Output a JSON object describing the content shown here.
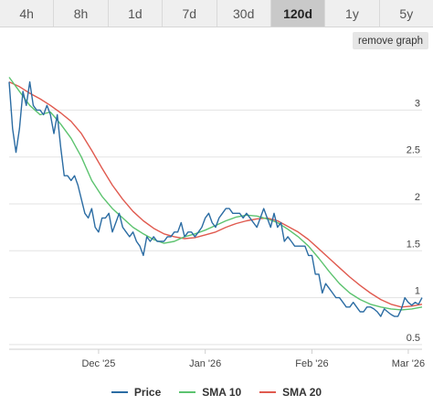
{
  "tabs": [
    {
      "label": "4h",
      "active": false
    },
    {
      "label": "8h",
      "active": false
    },
    {
      "label": "1d",
      "active": false
    },
    {
      "label": "7d",
      "active": false
    },
    {
      "label": "30d",
      "active": false
    },
    {
      "label": "120d",
      "active": true
    },
    {
      "label": "1y",
      "active": false
    },
    {
      "label": "5y",
      "active": false
    }
  ],
  "remove_graph_label": "remove graph",
  "chart_data": {
    "type": "line",
    "xlim": [
      "2025-11-05",
      "2026-03-05"
    ],
    "ylim": [
      0.45,
      3.55
    ],
    "y_ticks": [
      0.5,
      1,
      1.5,
      2,
      2.5,
      3
    ],
    "y_tick_labels": [
      "0.5",
      "1",
      "1.5",
      "2",
      "2.5",
      "3"
    ],
    "x_ticks": [
      "2025-12-01",
      "2026-01-01",
      "2026-02-01",
      "2026-03-01"
    ],
    "x_tick_labels": [
      "Dec '25",
      "Jan '26",
      "Feb '26",
      "Mar '26"
    ],
    "grid": true,
    "legend_position": "bottom",
    "series": [
      {
        "name": "Price",
        "color": "#2b6ca3",
        "points": [
          [
            "2025-11-05",
            3.3
          ],
          [
            "2025-11-06",
            2.8
          ],
          [
            "2025-11-07",
            2.55
          ],
          [
            "2025-11-08",
            2.8
          ],
          [
            "2025-11-09",
            3.2
          ],
          [
            "2025-11-10",
            3.05
          ],
          [
            "2025-11-11",
            3.3
          ],
          [
            "2025-11-12",
            3.05
          ],
          [
            "2025-11-13",
            3.0
          ],
          [
            "2025-11-14",
            3.0
          ],
          [
            "2025-11-15",
            2.95
          ],
          [
            "2025-11-16",
            3.05
          ],
          [
            "2025-11-17",
            2.95
          ],
          [
            "2025-11-18",
            2.75
          ],
          [
            "2025-11-19",
            2.95
          ],
          [
            "2025-11-20",
            2.6
          ],
          [
            "2025-11-21",
            2.3
          ],
          [
            "2025-11-22",
            2.3
          ],
          [
            "2025-11-23",
            2.25
          ],
          [
            "2025-11-24",
            2.3
          ],
          [
            "2025-11-25",
            2.2
          ],
          [
            "2025-11-26",
            2.05
          ],
          [
            "2025-11-27",
            1.9
          ],
          [
            "2025-11-28",
            1.85
          ],
          [
            "2025-11-29",
            1.95
          ],
          [
            "2025-11-30",
            1.75
          ],
          [
            "2025-12-01",
            1.7
          ],
          [
            "2025-12-02",
            1.85
          ],
          [
            "2025-12-03",
            1.85
          ],
          [
            "2025-12-04",
            1.9
          ],
          [
            "2025-12-05",
            1.7
          ],
          [
            "2025-12-06",
            1.8
          ],
          [
            "2025-12-07",
            1.9
          ],
          [
            "2025-12-08",
            1.75
          ],
          [
            "2025-12-09",
            1.7
          ],
          [
            "2025-12-10",
            1.65
          ],
          [
            "2025-12-11",
            1.7
          ],
          [
            "2025-12-12",
            1.6
          ],
          [
            "2025-12-13",
            1.55
          ],
          [
            "2025-12-14",
            1.45
          ],
          [
            "2025-12-15",
            1.65
          ],
          [
            "2025-12-16",
            1.6
          ],
          [
            "2025-12-17",
            1.65
          ],
          [
            "2025-12-18",
            1.6
          ],
          [
            "2025-12-19",
            1.6
          ],
          [
            "2025-12-20",
            1.6
          ],
          [
            "2025-12-21",
            1.65
          ],
          [
            "2025-12-22",
            1.65
          ],
          [
            "2025-12-23",
            1.7
          ],
          [
            "2025-12-24",
            1.7
          ],
          [
            "2025-12-25",
            1.8
          ],
          [
            "2025-12-26",
            1.65
          ],
          [
            "2025-12-27",
            1.7
          ],
          [
            "2025-12-28",
            1.7
          ],
          [
            "2025-12-29",
            1.65
          ],
          [
            "2025-12-30",
            1.7
          ],
          [
            "2025-12-31",
            1.75
          ],
          [
            "2026-01-01",
            1.85
          ],
          [
            "2026-01-02",
            1.9
          ],
          [
            "2026-01-03",
            1.8
          ],
          [
            "2026-01-04",
            1.75
          ],
          [
            "2026-01-05",
            1.85
          ],
          [
            "2026-01-06",
            1.9
          ],
          [
            "2026-01-07",
            1.95
          ],
          [
            "2026-01-08",
            1.95
          ],
          [
            "2026-01-09",
            1.9
          ],
          [
            "2026-01-10",
            1.9
          ],
          [
            "2026-01-11",
            1.9
          ],
          [
            "2026-01-12",
            1.85
          ],
          [
            "2026-01-13",
            1.9
          ],
          [
            "2026-01-14",
            1.85
          ],
          [
            "2026-01-15",
            1.8
          ],
          [
            "2026-01-16",
            1.75
          ],
          [
            "2026-01-17",
            1.85
          ],
          [
            "2026-01-18",
            1.95
          ],
          [
            "2026-01-19",
            1.85
          ],
          [
            "2026-01-20",
            1.75
          ],
          [
            "2026-01-21",
            1.9
          ],
          [
            "2026-01-22",
            1.75
          ],
          [
            "2026-01-23",
            1.8
          ],
          [
            "2026-01-24",
            1.6
          ],
          [
            "2026-01-25",
            1.65
          ],
          [
            "2026-01-26",
            1.6
          ],
          [
            "2026-01-27",
            1.55
          ],
          [
            "2026-01-28",
            1.55
          ],
          [
            "2026-01-29",
            1.55
          ],
          [
            "2026-01-30",
            1.55
          ],
          [
            "2026-01-31",
            1.45
          ],
          [
            "2026-02-01",
            1.45
          ],
          [
            "2026-02-02",
            1.25
          ],
          [
            "2026-02-03",
            1.25
          ],
          [
            "2026-02-04",
            1.05
          ],
          [
            "2026-02-05",
            1.15
          ],
          [
            "2026-02-06",
            1.1
          ],
          [
            "2026-02-07",
            1.05
          ],
          [
            "2026-02-08",
            1.0
          ],
          [
            "2026-02-09",
            1.0
          ],
          [
            "2026-02-10",
            0.95
          ],
          [
            "2026-02-11",
            0.9
          ],
          [
            "2026-02-12",
            0.9
          ],
          [
            "2026-02-13",
            0.95
          ],
          [
            "2026-02-14",
            0.9
          ],
          [
            "2026-02-15",
            0.85
          ],
          [
            "2026-02-16",
            0.85
          ],
          [
            "2026-02-17",
            0.9
          ],
          [
            "2026-02-18",
            0.9
          ],
          [
            "2026-02-19",
            0.88
          ],
          [
            "2026-02-20",
            0.85
          ],
          [
            "2026-02-21",
            0.8
          ],
          [
            "2026-02-22",
            0.88
          ],
          [
            "2026-02-23",
            0.85
          ],
          [
            "2026-02-24",
            0.82
          ],
          [
            "2026-02-25",
            0.8
          ],
          [
            "2026-02-26",
            0.8
          ],
          [
            "2026-02-27",
            0.88
          ],
          [
            "2026-02-28",
            1.0
          ],
          [
            "2026-03-01",
            0.95
          ],
          [
            "2026-03-02",
            0.92
          ],
          [
            "2026-03-03",
            0.95
          ],
          [
            "2026-03-04",
            0.93
          ],
          [
            "2026-03-05",
            1.0
          ]
        ]
      },
      {
        "name": "SMA 10",
        "color": "#5cc36f",
        "points": [
          [
            "2025-11-05",
            3.35
          ],
          [
            "2025-11-08",
            3.2
          ],
          [
            "2025-11-11",
            3.05
          ],
          [
            "2025-11-14",
            2.95
          ],
          [
            "2025-11-17",
            2.98
          ],
          [
            "2025-11-20",
            2.85
          ],
          [
            "2025-11-23",
            2.7
          ],
          [
            "2025-11-26",
            2.5
          ],
          [
            "2025-11-29",
            2.25
          ],
          [
            "2025-12-02",
            2.08
          ],
          [
            "2025-12-05",
            1.95
          ],
          [
            "2025-12-08",
            1.85
          ],
          [
            "2025-12-11",
            1.75
          ],
          [
            "2025-12-14",
            1.68
          ],
          [
            "2025-12-17",
            1.62
          ],
          [
            "2025-12-20",
            1.58
          ],
          [
            "2025-12-23",
            1.6
          ],
          [
            "2025-12-26",
            1.65
          ],
          [
            "2025-12-29",
            1.68
          ],
          [
            "2026-01-01",
            1.72
          ],
          [
            "2026-01-04",
            1.77
          ],
          [
            "2026-01-07",
            1.82
          ],
          [
            "2026-01-10",
            1.86
          ],
          [
            "2026-01-13",
            1.88
          ],
          [
            "2026-01-16",
            1.87
          ],
          [
            "2026-01-19",
            1.84
          ],
          [
            "2026-01-22",
            1.8
          ],
          [
            "2026-01-25",
            1.73
          ],
          [
            "2026-01-28",
            1.65
          ],
          [
            "2026-01-31",
            1.55
          ],
          [
            "2026-02-03",
            1.42
          ],
          [
            "2026-02-06",
            1.28
          ],
          [
            "2026-02-09",
            1.15
          ],
          [
            "2026-02-12",
            1.05
          ],
          [
            "2026-02-15",
            0.98
          ],
          [
            "2026-02-18",
            0.93
          ],
          [
            "2026-02-21",
            0.9
          ],
          [
            "2026-02-24",
            0.88
          ],
          [
            "2026-02-27",
            0.87
          ],
          [
            "2026-03-02",
            0.88
          ],
          [
            "2026-03-05",
            0.9
          ]
        ]
      },
      {
        "name": "SMA 20",
        "color": "#e05a4f",
        "points": [
          [
            "2025-11-05",
            3.3
          ],
          [
            "2025-11-08",
            3.25
          ],
          [
            "2025-11-11",
            3.18
          ],
          [
            "2025-11-14",
            3.12
          ],
          [
            "2025-11-17",
            3.05
          ],
          [
            "2025-11-20",
            2.97
          ],
          [
            "2025-11-23",
            2.88
          ],
          [
            "2025-11-26",
            2.75
          ],
          [
            "2025-11-29",
            2.57
          ],
          [
            "2025-12-02",
            2.38
          ],
          [
            "2025-12-05",
            2.2
          ],
          [
            "2025-12-08",
            2.05
          ],
          [
            "2025-12-11",
            1.92
          ],
          [
            "2025-12-14",
            1.82
          ],
          [
            "2025-12-17",
            1.74
          ],
          [
            "2025-12-20",
            1.68
          ],
          [
            "2025-12-23",
            1.65
          ],
          [
            "2025-12-26",
            1.63
          ],
          [
            "2025-12-29",
            1.64
          ],
          [
            "2026-01-01",
            1.67
          ],
          [
            "2026-01-04",
            1.7
          ],
          [
            "2026-01-07",
            1.75
          ],
          [
            "2026-01-10",
            1.79
          ],
          [
            "2026-01-13",
            1.82
          ],
          [
            "2026-01-16",
            1.84
          ],
          [
            "2026-01-19",
            1.85
          ],
          [
            "2026-01-22",
            1.82
          ],
          [
            "2026-01-25",
            1.76
          ],
          [
            "2026-01-28",
            1.7
          ],
          [
            "2026-01-31",
            1.62
          ],
          [
            "2026-02-03",
            1.52
          ],
          [
            "2026-02-06",
            1.42
          ],
          [
            "2026-02-09",
            1.32
          ],
          [
            "2026-02-12",
            1.22
          ],
          [
            "2026-02-15",
            1.13
          ],
          [
            "2026-02-18",
            1.05
          ],
          [
            "2026-02-21",
            0.98
          ],
          [
            "2026-02-24",
            0.93
          ],
          [
            "2026-02-27",
            0.9
          ],
          [
            "2026-03-02",
            0.91
          ],
          [
            "2026-03-05",
            0.93
          ]
        ]
      }
    ]
  }
}
